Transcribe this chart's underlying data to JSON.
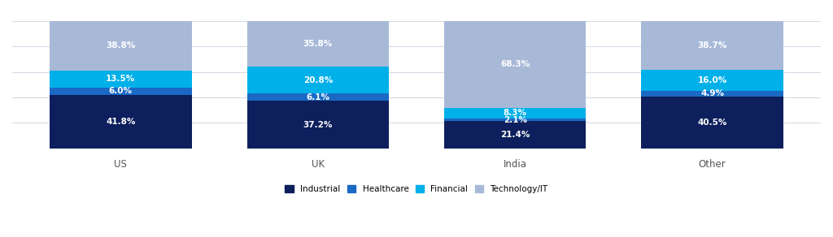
{
  "categories": [
    "US",
    "UK",
    "India",
    "Other"
  ],
  "series": {
    "Industrial": [
      41.8,
      37.2,
      21.4,
      40.5
    ],
    "Healthcare": [
      6.0,
      6.1,
      2.1,
      4.9
    ],
    "Financial": [
      13.5,
      20.8,
      8.3,
      16.0
    ],
    "Technology/IT": [
      38.8,
      35.8,
      68.3,
      38.7
    ]
  },
  "colors": {
    "Industrial": "#0d1f5c",
    "Healthcare": "#1a69c4",
    "Financial": "#00b0e8",
    "Technology/IT": "#a8b9d8"
  },
  "bar_width": 0.72,
  "figsize": [
    10.24,
    2.92
  ],
  "dpi": 100,
  "label_fontsize": 7.5,
  "legend_fontsize": 7.5,
  "tick_fontsize": 8.5,
  "label_color": "white",
  "background_color": "#ffffff",
  "grid_color": "#d5dce6",
  "ylim": [
    0,
    107
  ]
}
